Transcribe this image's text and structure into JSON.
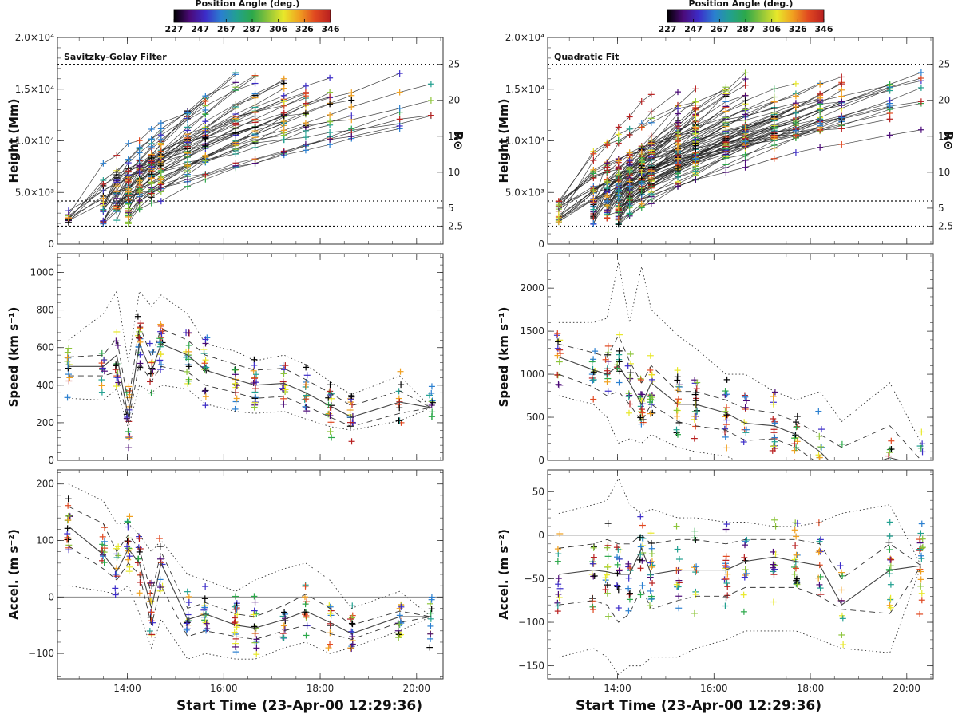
{
  "colorbar": {
    "title": "Position Angle (deg.)",
    "ticks": [
      "227",
      "247",
      "267",
      "287",
      "306",
      "326",
      "346"
    ],
    "colors": [
      "#000000",
      "#4b0a78",
      "#3c2cc8",
      "#2a7fd0",
      "#22a090",
      "#2ca84a",
      "#8cc43a",
      "#e8e82a",
      "#f0a020",
      "#e04820",
      "#b82020"
    ]
  },
  "x_axis": {
    "title": "Start Time (23-Apr-00 12:29:36)",
    "ticks": [
      "14:00",
      "16:00",
      "18:00",
      "20:00"
    ],
    "tick_hours": [
      14,
      16,
      18,
      20
    ],
    "range_hours": [
      12.55,
      20.55
    ],
    "epoch_times": [
      12.78,
      13.5,
      13.78,
      14.02,
      14.25,
      14.5,
      14.7,
      15.25,
      15.62,
      16.25,
      16.65,
      17.25,
      17.7,
      18.2,
      18.65,
      19.65,
      20.3
    ]
  },
  "chart_data": [
    {
      "type": "scatter",
      "panel": "height-savitzky-golay",
      "annotation": "Savitzky-Golay Filter",
      "ylabel": "Height (Mm)",
      "ylabel_right": "R⊙",
      "ylim": [
        0,
        20000
      ],
      "yticks": [
        {
          "v": 0,
          "t": "0"
        },
        {
          "v": 5000,
          "t": "5.0×10³"
        },
        {
          "v": 10000,
          "t": "1.0×10⁴"
        },
        {
          "v": 15000,
          "t": "1.5×10⁴"
        },
        {
          "v": 20000,
          "t": "2.0×10⁴"
        }
      ],
      "right_ticks": [
        {
          "v": 1740,
          "t": "2.5"
        },
        {
          "v": 3480,
          "t": "5"
        },
        {
          "v": 6960,
          "t": "10"
        },
        {
          "v": 10440,
          "t": "15"
        },
        {
          "v": 13920,
          "t": "20"
        },
        {
          "v": 17400,
          "t": "25"
        }
      ],
      "ref_lines": [
        1740,
        4170,
        17400
      ],
      "start_h": [
        2000,
        4200
      ],
      "end_h": [
        11000,
        16500
      ],
      "n_tracks": 45
    },
    {
      "type": "scatter",
      "panel": "height-quadratic",
      "annotation": "Quadratic Fit",
      "ylabel": "Height (Mm)",
      "ylabel_right": "R⊙",
      "ylim": [
        0,
        20000
      ],
      "yticks": [
        {
          "v": 0,
          "t": "0"
        },
        {
          "v": 5000,
          "t": "5.0×10³"
        },
        {
          "v": 10000,
          "t": "1.0×10⁴"
        },
        {
          "v": 15000,
          "t": "1.5×10⁴"
        },
        {
          "v": 20000,
          "t": "2.0×10⁴"
        }
      ],
      "right_ticks": [
        {
          "v": 1740,
          "t": "2.5"
        },
        {
          "v": 3480,
          "t": "5"
        },
        {
          "v": 6960,
          "t": "10"
        },
        {
          "v": 10440,
          "t": "15"
        },
        {
          "v": 13920,
          "t": "20"
        },
        {
          "v": 17400,
          "t": "25"
        }
      ],
      "ref_lines": [
        1740,
        4170,
        17400
      ],
      "start_h": [
        2000,
        4200
      ],
      "end_h": [
        11000,
        16500
      ],
      "n_tracks": 75
    },
    {
      "type": "scatter",
      "panel": "speed-savitzky-golay",
      "ylabel": "Speed (km s⁻¹)",
      "ylim": [
        0,
        1100
      ],
      "yticks": [
        {
          "v": 0,
          "t": "0"
        },
        {
          "v": 200,
          "t": "200"
        },
        {
          "v": 400,
          "t": "400"
        },
        {
          "v": 600,
          "t": "600"
        },
        {
          "v": 800,
          "t": "800"
        },
        {
          "v": 1000,
          "t": "1000"
        }
      ],
      "median": [
        500,
        500,
        560,
        230,
        620,
        470,
        620,
        560,
        480,
        430,
        400,
        410,
        360,
        290,
        230,
        310,
        280
      ],
      "q_low": [
        450,
        450,
        470,
        200,
        520,
        420,
        500,
        470,
        400,
        360,
        330,
        340,
        290,
        230,
        180,
        250,
        280
      ],
      "q_high": [
        550,
        560,
        650,
        300,
        720,
        550,
        700,
        640,
        560,
        510,
        480,
        490,
        430,
        360,
        290,
        370,
        280
      ],
      "env_low": [
        330,
        320,
        380,
        170,
        400,
        360,
        400,
        380,
        300,
        260,
        250,
        260,
        220,
        180,
        160,
        210,
        280
      ],
      "env_high": [
        640,
        780,
        900,
        520,
        900,
        820,
        880,
        780,
        620,
        580,
        530,
        560,
        510,
        420,
        350,
        450,
        280
      ],
      "spread": 200
    },
    {
      "type": "scatter",
      "panel": "speed-quadratic",
      "ylabel": "Speed (km s⁻¹)",
      "ylim": [
        0,
        2400
      ],
      "yticks": [
        {
          "v": 0,
          "t": "0"
        },
        {
          "v": 500,
          "t": "500"
        },
        {
          "v": 1000,
          "t": "1000"
        },
        {
          "v": 1500,
          "t": "1500"
        },
        {
          "v": 2000,
          "t": "2000"
        }
      ],
      "median": [
        1200,
        1050,
        1000,
        1100,
        900,
        650,
        900,
        650,
        650,
        550,
        430,
        400,
        300,
        100,
        -150,
        30,
        -60
      ],
      "q_low": [
        1000,
        850,
        750,
        800,
        650,
        450,
        650,
        450,
        400,
        350,
        230,
        250,
        150,
        -50,
        -300,
        -50,
        -120
      ],
      "q_high": [
        1350,
        1250,
        1200,
        1450,
        1150,
        900,
        1100,
        800,
        800,
        700,
        600,
        550,
        450,
        300,
        150,
        400,
        0
      ],
      "env_low": [
        750,
        650,
        500,
        200,
        250,
        200,
        300,
        150,
        100,
        50,
        -50,
        -100,
        -200,
        -300,
        -400,
        -200,
        -250
      ],
      "env_high": [
        1600,
        1600,
        1650,
        2300,
        1600,
        2250,
        1750,
        1450,
        1300,
        1000,
        1000,
        800,
        700,
        800,
        450,
        900,
        200
      ],
      "spread": 480
    },
    {
      "type": "scatter",
      "panel": "accel-savitzky-golay",
      "ylabel": "Accel. (m s⁻²)",
      "xlabel": "Start Time (23-Apr-00 12:29:36)",
      "ylim": [
        -145,
        225
      ],
      "yticks": [
        {
          "v": -100,
          "t": "−100"
        },
        {
          "v": 0,
          "t": "0"
        },
        {
          "v": 100,
          "t": "100"
        },
        {
          "v": 200,
          "t": "200"
        }
      ],
      "zero_line": true,
      "median": [
        125,
        75,
        45,
        85,
        60,
        -20,
        60,
        -40,
        -30,
        -50,
        -55,
        -40,
        -25,
        -45,
        -65,
        -35,
        -35
      ],
      "q_low": [
        90,
        50,
        30,
        60,
        40,
        -50,
        20,
        -70,
        -60,
        -70,
        -75,
        -60,
        -50,
        -65,
        -75,
        -45,
        -35
      ],
      "q_high": [
        160,
        130,
        80,
        110,
        85,
        5,
        80,
        -20,
        -10,
        -30,
        -35,
        -15,
        5,
        -20,
        -50,
        -25,
        -35
      ],
      "env_low": [
        20,
        10,
        5,
        20,
        -30,
        -90,
        -40,
        -110,
        -100,
        -110,
        -110,
        -90,
        -80,
        -100,
        -90,
        -60,
        -35
      ],
      "env_high": [
        200,
        170,
        130,
        130,
        110,
        80,
        100,
        40,
        30,
        10,
        30,
        50,
        60,
        30,
        -20,
        10,
        -35
      ],
      "spread": 60
    },
    {
      "type": "scatter",
      "panel": "accel-quadratic",
      "ylabel": "Accel. (m s⁻²)",
      "xlabel": "Start Time (23-Apr-00 12:29:36)",
      "ylim": [
        -165,
        75
      ],
      "yticks": [
        {
          "v": -150,
          "t": "−150"
        },
        {
          "v": -100,
          "t": "−100"
        },
        {
          "v": -50,
          "t": "−50"
        },
        {
          "v": 0,
          "t": "0"
        },
        {
          "v": 50,
          "t": "50"
        }
      ],
      "zero_line": true,
      "median": [
        -45,
        -40,
        -42,
        -45,
        -45,
        -15,
        -45,
        -40,
        -40,
        -40,
        -30,
        -25,
        -30,
        -35,
        -80,
        -40,
        -35
      ],
      "q_low": [
        -80,
        -75,
        -80,
        -100,
        -90,
        -60,
        -85,
        -75,
        -70,
        -70,
        -60,
        -60,
        -60,
        -70,
        -85,
        -90,
        -35
      ],
      "q_high": [
        -15,
        -10,
        -5,
        -10,
        -10,
        0,
        -10,
        -5,
        -5,
        -10,
        -5,
        -5,
        -5,
        -10,
        -50,
        -10,
        -35
      ],
      "env_low": [
        -140,
        -130,
        -140,
        -160,
        -150,
        -150,
        -140,
        -140,
        -130,
        -120,
        -110,
        -110,
        -110,
        -120,
        -130,
        -135,
        -35
      ],
      "env_high": [
        25,
        35,
        40,
        65,
        35,
        25,
        30,
        20,
        20,
        15,
        15,
        10,
        10,
        15,
        25,
        35,
        -35
      ],
      "spread": 60
    }
  ]
}
